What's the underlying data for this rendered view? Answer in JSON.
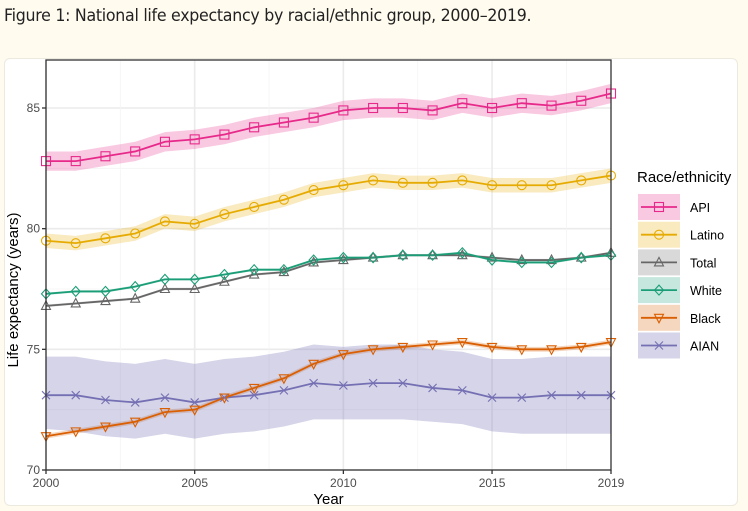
{
  "caption": "Figure 1: National life expectancy by racial/ethnic group, 2000–2019.",
  "chart_data": {
    "type": "line",
    "title": "",
    "xlabel": "Year",
    "ylabel": "Life expectancy (years)",
    "xlim": [
      2000,
      2019
    ],
    "ylim": [
      70,
      87
    ],
    "xticks": [
      2000,
      2005,
      2010,
      2015,
      2019
    ],
    "yticks": [
      70,
      75,
      80,
      85
    ],
    "grid": true,
    "legend": {
      "title": "Race/ethnicity",
      "position": "right"
    },
    "x": [
      2000,
      2001,
      2002,
      2003,
      2004,
      2005,
      2006,
      2007,
      2008,
      2009,
      2010,
      2011,
      2012,
      2013,
      2014,
      2015,
      2016,
      2017,
      2018,
      2019
    ],
    "series": [
      {
        "name": "API",
        "color": "#e7298a",
        "marker": "square",
        "values": [
          82.8,
          82.8,
          83.0,
          83.2,
          83.6,
          83.7,
          83.9,
          84.2,
          84.4,
          84.6,
          84.9,
          85.0,
          85.0,
          84.9,
          85.2,
          85.0,
          85.2,
          85.1,
          85.3,
          85.6
        ],
        "ci_half_width": 0.4
      },
      {
        "name": "Latino",
        "color": "#e6ab02",
        "marker": "circle",
        "values": [
          79.5,
          79.4,
          79.6,
          79.8,
          80.3,
          80.2,
          80.6,
          80.9,
          81.2,
          81.6,
          81.8,
          82.0,
          81.9,
          81.9,
          82.0,
          81.8,
          81.8,
          81.8,
          82.0,
          82.2
        ],
        "ci_half_width": 0.3
      },
      {
        "name": "Total",
        "color": "#666666",
        "marker": "triangle",
        "values": [
          76.8,
          76.9,
          77.0,
          77.1,
          77.5,
          77.5,
          77.8,
          78.1,
          78.2,
          78.6,
          78.7,
          78.8,
          78.9,
          78.9,
          78.9,
          78.8,
          78.7,
          78.7,
          78.8,
          79.0
        ],
        "ci_half_width": 0.05
      },
      {
        "name": "White",
        "color": "#1b9e77",
        "marker": "diamond",
        "values": [
          77.3,
          77.4,
          77.4,
          77.6,
          77.9,
          77.9,
          78.1,
          78.3,
          78.3,
          78.7,
          78.8,
          78.8,
          78.9,
          78.9,
          79.0,
          78.7,
          78.6,
          78.6,
          78.8,
          78.9
        ],
        "ci_half_width": 0.05
      },
      {
        "name": "Black",
        "color": "#d95f02",
        "marker": "triangle-down",
        "values": [
          71.4,
          71.6,
          71.8,
          72.0,
          72.4,
          72.5,
          73.0,
          73.4,
          73.8,
          74.4,
          74.8,
          75.0,
          75.1,
          75.2,
          75.3,
          75.1,
          75.0,
          75.0,
          75.1,
          75.3
        ],
        "ci_half_width": 0.1
      },
      {
        "name": "AIAN",
        "color": "#7570b3",
        "marker": "x",
        "values": [
          73.1,
          73.1,
          72.9,
          72.8,
          73.0,
          72.8,
          73.0,
          73.1,
          73.3,
          73.6,
          73.5,
          73.6,
          73.6,
          73.4,
          73.3,
          73.0,
          73.0,
          73.1,
          73.1,
          73.1
        ],
        "ci_lower": [
          71.7,
          71.6,
          71.4,
          71.3,
          71.5,
          71.3,
          71.5,
          71.6,
          71.8,
          72.1,
          72.1,
          72.1,
          72.1,
          72.0,
          71.9,
          71.6,
          71.5,
          71.5,
          71.5,
          71.5
        ],
        "ci_upper": [
          74.7,
          74.7,
          74.5,
          74.4,
          74.6,
          74.4,
          74.6,
          74.7,
          74.9,
          75.2,
          75.1,
          75.2,
          75.2,
          75.0,
          74.9,
          74.6,
          74.6,
          74.7,
          74.7,
          74.7
        ]
      }
    ]
  }
}
